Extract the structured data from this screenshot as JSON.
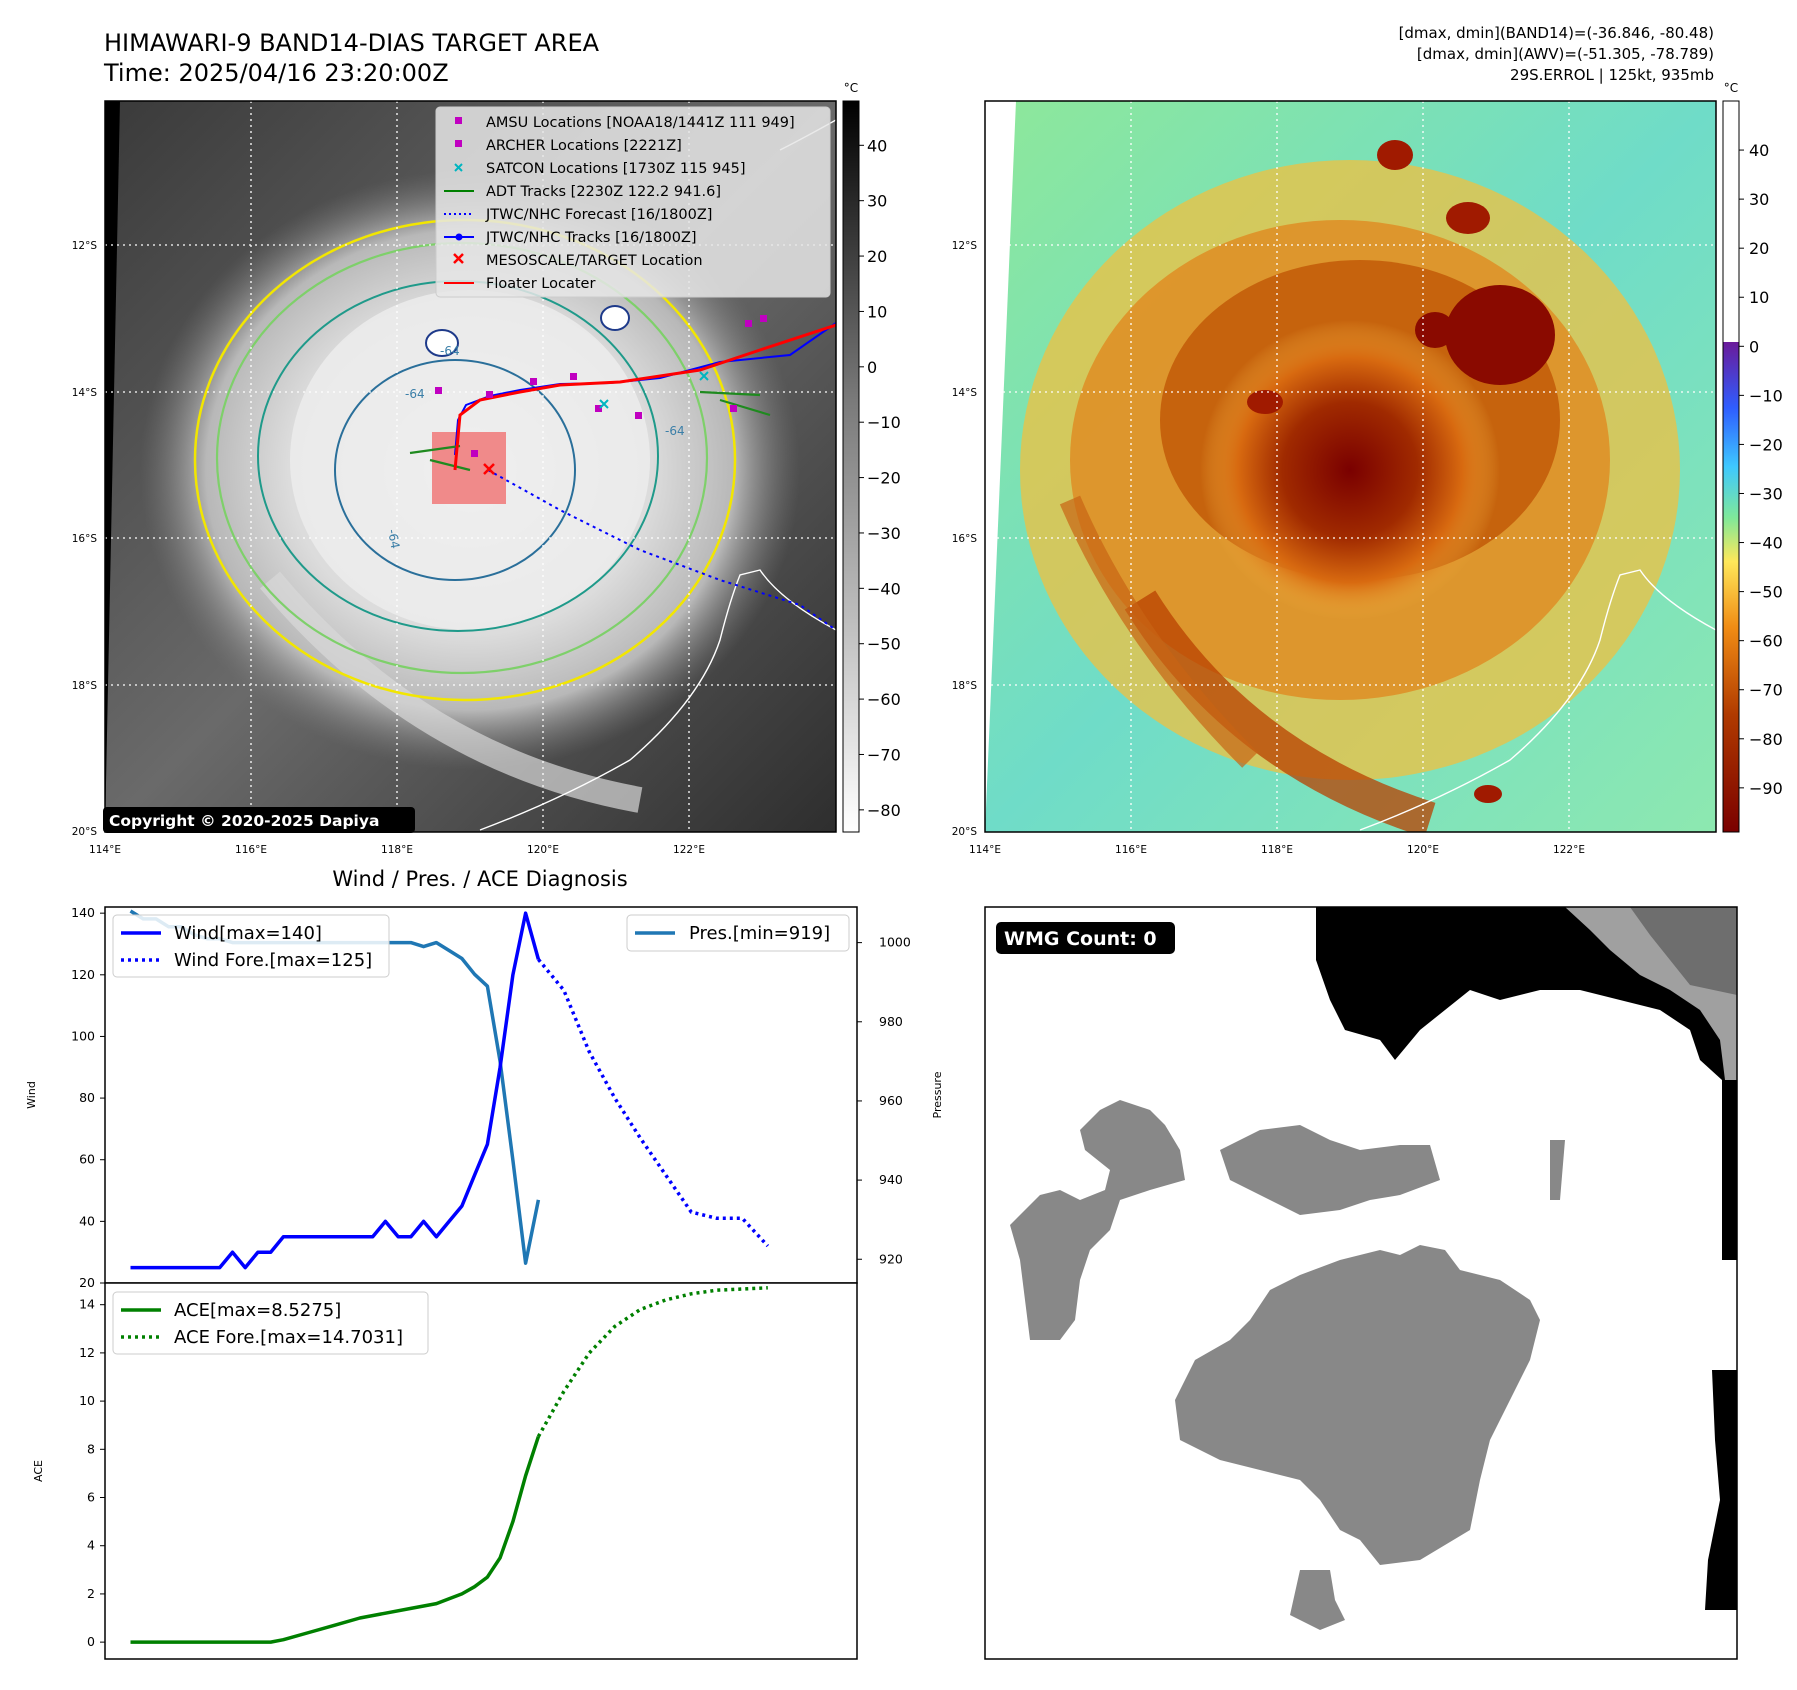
{
  "header": {
    "title_line1": "HIMAWARI-9 BAND14-DIAS TARGET AREA",
    "title_line2": "Time: 2025/04/16 23:20:00Z",
    "info_line1": "[dmax, dmin](BAND14)=(-36.846, -80.48)",
    "info_line2": "[dmax, dmin](AWV)=(-51.305, -78.789)",
    "info_line3": "29S.ERROL | 125kt, 935mb"
  },
  "map_axes": {
    "lon_labels": [
      "114°E",
      "116°E",
      "118°E",
      "120°E",
      "122°E"
    ],
    "lat_labels": [
      "12°S",
      "14°S",
      "16°S",
      "18°S",
      "20°S"
    ],
    "contour_labels": [
      "-64",
      "-64",
      "-64",
      "-64"
    ]
  },
  "colorbars": {
    "unit": "°C",
    "left_ticks": [
      "40",
      "30",
      "20",
      "10",
      "0",
      "−10",
      "−20",
      "−30",
      "−40",
      "−50",
      "−60",
      "−70",
      "−80"
    ],
    "right_ticks": [
      "40",
      "30",
      "20",
      "10",
      "0",
      "−10",
      "−20",
      "−30",
      "−40",
      "−50",
      "−60",
      "−70",
      "−80",
      "−90"
    ]
  },
  "ir_legend": {
    "items": [
      {
        "label": "AMSU Locations [NOAA18/1441Z 111 949]",
        "color": "#c000c0"
      },
      {
        "label": "ARCHER Locations [2221Z]",
        "color": "#c000c0"
      },
      {
        "label": "SATCON Locations [1730Z 115 945]",
        "color": "#00b5c0"
      },
      {
        "label": "ADT Tracks [2230Z 122.2 941.6]",
        "color": "#008000"
      },
      {
        "label": "JTWC/NHC Forecast [16/1800Z]",
        "color": "#0000ff"
      },
      {
        "label": "JTWC/NHC Tracks [16/1800Z]",
        "color": "#0000ff"
      },
      {
        "label": "MESOSCALE/TARGET Location",
        "color": "#ff0000"
      },
      {
        "label": "Floater Locater",
        "color": "#ff0000"
      }
    ]
  },
  "copyright": "Copyright © 2020-2025 Dapiya",
  "wmg_badge": "WMG Count: 0",
  "diag_title": "Wind / Pres. / ACE Diagnosis",
  "chart_data": [
    {
      "type": "line",
      "title": "Wind / Pres. / ACE Diagnosis",
      "ylabel": "Wind",
      "y2label": "Pressure",
      "ylim": [
        20,
        142
      ],
      "y2lim": [
        914,
        1009
      ],
      "yticks": [
        "20",
        "40",
        "60",
        "80",
        "100",
        "120",
        "140"
      ],
      "y2ticks": [
        "920",
        "940",
        "960",
        "980",
        "1000"
      ],
      "series": [
        {
          "name": "Wind[max=140]",
          "axis": "left",
          "color": "#0000ff",
          "style": "solid",
          "x": [
            0,
            1,
            2,
            3,
            4,
            5,
            6,
            7,
            8,
            9,
            10,
            11,
            12,
            13,
            14,
            15,
            16,
            17,
            18,
            19,
            20,
            21,
            22,
            23,
            24,
            25,
            26,
            27,
            28,
            29,
            30,
            31,
            32
          ],
          "values": [
            25,
            25,
            25,
            25,
            25,
            25,
            25,
            25,
            30,
            25,
            30,
            30,
            35,
            35,
            35,
            35,
            35,
            35,
            35,
            35,
            40,
            35,
            35,
            40,
            35,
            40,
            45,
            55,
            65,
            90,
            120,
            140,
            125
          ]
        },
        {
          "name": "Wind Fore.[max=125]",
          "axis": "left",
          "color": "#0000ff",
          "style": "dotted",
          "x": [
            32,
            34,
            36,
            38,
            40,
            42,
            44,
            46,
            48,
            50
          ],
          "values": [
            125,
            115,
            95,
            80,
            67,
            55,
            43,
            41,
            41,
            32
          ]
        },
        {
          "name": "Pres.[min=919]",
          "axis": "right",
          "color": "#1f77b4",
          "style": "solid",
          "x": [
            0,
            1,
            2,
            3,
            4,
            5,
            6,
            7,
            8,
            9,
            10,
            11,
            12,
            13,
            14,
            15,
            16,
            17,
            18,
            19,
            20,
            21,
            22,
            23,
            24,
            25,
            26,
            27,
            28,
            29,
            30,
            31,
            32
          ],
          "values": [
            1008,
            1006,
            1006,
            1004,
            1004,
            1002,
            1001,
            1001,
            1000,
            1000,
            1000,
            1000,
            1000,
            1000,
            1000,
            1000,
            1000,
            1000,
            1000,
            1000,
            1000,
            1000,
            1000,
            999,
            1000,
            998,
            996,
            992,
            989,
            970,
            945,
            919,
            935
          ]
        }
      ]
    },
    {
      "type": "line",
      "ylabel": "ACE",
      "ylim": [
        -0.7,
        14.9
      ],
      "yticks": [
        "0",
        "2",
        "4",
        "6",
        "8",
        "10",
        "12",
        "14"
      ],
      "series": [
        {
          "name": "ACE[max=8.5275]",
          "color": "#008000",
          "style": "solid",
          "x": [
            0,
            4,
            8,
            11,
            12,
            14,
            16,
            18,
            20,
            22,
            24,
            25,
            26,
            27,
            28,
            29,
            30,
            31,
            32
          ],
          "values": [
            0,
            0,
            0,
            0,
            0.1,
            0.4,
            0.7,
            1.0,
            1.2,
            1.4,
            1.6,
            1.8,
            2.0,
            2.3,
            2.7,
            3.5,
            5.0,
            6.9,
            8.53
          ]
        },
        {
          "name": "ACE Fore.[max=14.7031]",
          "color": "#008000",
          "style": "dotted",
          "x": [
            32,
            34,
            36,
            38,
            40,
            42,
            44,
            46,
            48,
            50
          ],
          "values": [
            8.53,
            10.4,
            12.0,
            13.1,
            13.8,
            14.2,
            14.45,
            14.6,
            14.65,
            14.7
          ]
        }
      ]
    }
  ]
}
